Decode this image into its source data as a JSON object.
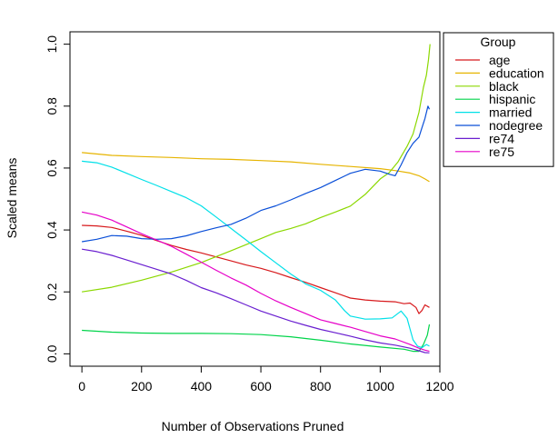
{
  "chart_data": {
    "type": "line",
    "title": "",
    "xlabel": "Number of Observations Pruned",
    "ylabel": "Scaled means",
    "xlim": [
      -40,
      1200
    ],
    "ylim": [
      -0.04,
      1.04
    ],
    "x_ticks": [
      0,
      200,
      400,
      600,
      800,
      1000,
      1200
    ],
    "y_ticks": [
      0.0,
      0.2,
      0.4,
      0.6,
      0.8,
      1.0
    ],
    "x_tick_labels": [
      "0",
      "200",
      "400",
      "600",
      "800",
      "1000",
      "1200"
    ],
    "y_tick_labels": [
      "0.0",
      "0.2",
      "0.4",
      "0.6",
      "0.8",
      "1.0"
    ],
    "grid": false,
    "legend": {
      "title": "Group",
      "placement": "right"
    },
    "series": [
      {
        "name": "age",
        "color": "#d7191c",
        "points": [
          [
            0,
            0.415
          ],
          [
            50,
            0.413
          ],
          [
            100,
            0.408
          ],
          [
            150,
            0.396
          ],
          [
            200,
            0.383
          ],
          [
            250,
            0.366
          ],
          [
            300,
            0.35
          ],
          [
            350,
            0.337
          ],
          [
            400,
            0.326
          ],
          [
            450,
            0.313
          ],
          [
            500,
            0.3
          ],
          [
            550,
            0.287
          ],
          [
            600,
            0.276
          ],
          [
            650,
            0.262
          ],
          [
            700,
            0.246
          ],
          [
            750,
            0.231
          ],
          [
            800,
            0.214
          ],
          [
            850,
            0.197
          ],
          [
            900,
            0.18
          ],
          [
            950,
            0.174
          ],
          [
            1000,
            0.17
          ],
          [
            1050,
            0.168
          ],
          [
            1080,
            0.162
          ],
          [
            1100,
            0.164
          ],
          [
            1120,
            0.15
          ],
          [
            1130,
            0.13
          ],
          [
            1140,
            0.14
          ],
          [
            1150,
            0.158
          ],
          [
            1165,
            0.15
          ]
        ]
      },
      {
        "name": "education",
        "color": "#e6b400",
        "points": [
          [
            0,
            0.65
          ],
          [
            100,
            0.641
          ],
          [
            200,
            0.637
          ],
          [
            300,
            0.634
          ],
          [
            400,
            0.63
          ],
          [
            500,
            0.628
          ],
          [
            600,
            0.624
          ],
          [
            700,
            0.62
          ],
          [
            800,
            0.612
          ],
          [
            900,
            0.605
          ],
          [
            1000,
            0.598
          ],
          [
            1050,
            0.592
          ],
          [
            1100,
            0.584
          ],
          [
            1130,
            0.575
          ],
          [
            1150,
            0.565
          ],
          [
            1165,
            0.556
          ]
        ]
      },
      {
        "name": "black",
        "color": "#8bd800",
        "points": [
          [
            0,
            0.2
          ],
          [
            100,
            0.215
          ],
          [
            200,
            0.238
          ],
          [
            300,
            0.264
          ],
          [
            400,
            0.295
          ],
          [
            500,
            0.333
          ],
          [
            600,
            0.372
          ],
          [
            650,
            0.392
          ],
          [
            700,
            0.405
          ],
          [
            750,
            0.42
          ],
          [
            800,
            0.44
          ],
          [
            850,
            0.458
          ],
          [
            900,
            0.477
          ],
          [
            950,
            0.515
          ],
          [
            1000,
            0.565
          ],
          [
            1030,
            0.585
          ],
          [
            1060,
            0.62
          ],
          [
            1090,
            0.67
          ],
          [
            1110,
            0.71
          ],
          [
            1130,
            0.78
          ],
          [
            1145,
            0.86
          ],
          [
            1155,
            0.9
          ],
          [
            1162,
            0.95
          ],
          [
            1167,
            1.0
          ]
        ]
      },
      {
        "name": "hispanic",
        "color": "#00d44a",
        "points": [
          [
            0,
            0.076
          ],
          [
            100,
            0.07
          ],
          [
            200,
            0.067
          ],
          [
            300,
            0.066
          ],
          [
            400,
            0.066
          ],
          [
            500,
            0.065
          ],
          [
            600,
            0.062
          ],
          [
            700,
            0.055
          ],
          [
            800,
            0.044
          ],
          [
            900,
            0.032
          ],
          [
            1000,
            0.022
          ],
          [
            1080,
            0.015
          ],
          [
            1110,
            0.008
          ],
          [
            1130,
            0.008
          ],
          [
            1145,
            0.03
          ],
          [
            1158,
            0.06
          ],
          [
            1165,
            0.095
          ]
        ]
      },
      {
        "name": "married",
        "color": "#00e0e8",
        "points": [
          [
            0,
            0.622
          ],
          [
            50,
            0.617
          ],
          [
            100,
            0.603
          ],
          [
            150,
            0.583
          ],
          [
            200,
            0.563
          ],
          [
            250,
            0.544
          ],
          [
            300,
            0.524
          ],
          [
            350,
            0.504
          ],
          [
            400,
            0.478
          ],
          [
            450,
            0.442
          ],
          [
            500,
            0.405
          ],
          [
            550,
            0.368
          ],
          [
            600,
            0.33
          ],
          [
            650,
            0.294
          ],
          [
            700,
            0.258
          ],
          [
            750,
            0.226
          ],
          [
            800,
            0.205
          ],
          [
            850,
            0.174
          ],
          [
            880,
            0.14
          ],
          [
            900,
            0.122
          ],
          [
            950,
            0.112
          ],
          [
            1000,
            0.113
          ],
          [
            1040,
            0.116
          ],
          [
            1070,
            0.138
          ],
          [
            1090,
            0.115
          ],
          [
            1100,
            0.08
          ],
          [
            1110,
            0.045
          ],
          [
            1125,
            0.025
          ],
          [
            1140,
            0.02
          ],
          [
            1155,
            0.03
          ],
          [
            1165,
            0.025
          ]
        ]
      },
      {
        "name": "nodegree",
        "color": "#0a4fd8",
        "points": [
          [
            0,
            0.362
          ],
          [
            50,
            0.37
          ],
          [
            100,
            0.382
          ],
          [
            150,
            0.38
          ],
          [
            200,
            0.372
          ],
          [
            250,
            0.37
          ],
          [
            300,
            0.372
          ],
          [
            350,
            0.381
          ],
          [
            400,
            0.395
          ],
          [
            450,
            0.407
          ],
          [
            500,
            0.418
          ],
          [
            550,
            0.438
          ],
          [
            600,
            0.463
          ],
          [
            650,
            0.478
          ],
          [
            700,
            0.497
          ],
          [
            750,
            0.518
          ],
          [
            800,
            0.537
          ],
          [
            850,
            0.56
          ],
          [
            900,
            0.583
          ],
          [
            950,
            0.596
          ],
          [
            1000,
            0.59
          ],
          [
            1030,
            0.58
          ],
          [
            1050,
            0.575
          ],
          [
            1070,
            0.61
          ],
          [
            1090,
            0.65
          ],
          [
            1110,
            0.68
          ],
          [
            1130,
            0.7
          ],
          [
            1140,
            0.73
          ],
          [
            1150,
            0.76
          ],
          [
            1160,
            0.8
          ],
          [
            1165,
            0.79
          ]
        ]
      },
      {
        "name": "re74",
        "color": "#6a1fd0",
        "points": [
          [
            0,
            0.338
          ],
          [
            50,
            0.33
          ],
          [
            100,
            0.318
          ],
          [
            150,
            0.303
          ],
          [
            200,
            0.288
          ],
          [
            250,
            0.273
          ],
          [
            300,
            0.258
          ],
          [
            350,
            0.237
          ],
          [
            400,
            0.214
          ],
          [
            450,
            0.197
          ],
          [
            500,
            0.178
          ],
          [
            550,
            0.158
          ],
          [
            600,
            0.138
          ],
          [
            650,
            0.122
          ],
          [
            700,
            0.106
          ],
          [
            750,
            0.092
          ],
          [
            800,
            0.079
          ],
          [
            850,
            0.068
          ],
          [
            900,
            0.057
          ],
          [
            950,
            0.045
          ],
          [
            1000,
            0.035
          ],
          [
            1050,
            0.028
          ],
          [
            1100,
            0.018
          ],
          [
            1130,
            0.01
          ],
          [
            1150,
            0.004
          ],
          [
            1165,
            0.003
          ]
        ]
      },
      {
        "name": "re75",
        "color": "#e600c8",
        "points": [
          [
            0,
            0.458
          ],
          [
            50,
            0.448
          ],
          [
            100,
            0.432
          ],
          [
            150,
            0.41
          ],
          [
            200,
            0.388
          ],
          [
            250,
            0.368
          ],
          [
            300,
            0.347
          ],
          [
            350,
            0.322
          ],
          [
            400,
            0.296
          ],
          [
            450,
            0.27
          ],
          [
            500,
            0.245
          ],
          [
            550,
            0.222
          ],
          [
            600,
            0.195
          ],
          [
            650,
            0.171
          ],
          [
            700,
            0.15
          ],
          [
            750,
            0.13
          ],
          [
            800,
            0.11
          ],
          [
            850,
            0.098
          ],
          [
            900,
            0.086
          ],
          [
            950,
            0.072
          ],
          [
            1000,
            0.058
          ],
          [
            1050,
            0.048
          ],
          [
            1100,
            0.03
          ],
          [
            1130,
            0.018
          ],
          [
            1150,
            0.012
          ],
          [
            1165,
            0.008
          ]
        ]
      }
    ]
  }
}
